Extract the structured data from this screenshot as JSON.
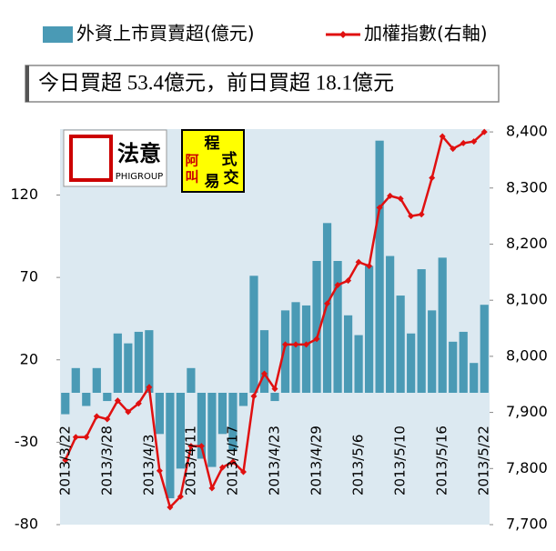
{
  "chart_data": {
    "type": "bar_line",
    "legend": {
      "bar": "外資上市買賣超(億元)",
      "line": "加權指數(右軸)"
    },
    "annotation": "今日買超 53.4億元，前日買超 18.1億元",
    "logos": {
      "brand": "法意",
      "brand_en": "PHIGROUP",
      "badge": [
        "程",
        "式",
        "易",
        "交"
      ],
      "badge_side": [
        "阿",
        "叫"
      ]
    },
    "categories": [
      "2013/3/22",
      null,
      null,
      null,
      "2013/3/28",
      null,
      null,
      null,
      "2013/4/3",
      null,
      null,
      null,
      "2013/4/11",
      null,
      null,
      null,
      "2013/4/17",
      null,
      null,
      null,
      "2013/4/23",
      null,
      null,
      null,
      "2013/4/29",
      null,
      null,
      null,
      "2013/5/6",
      null,
      null,
      null,
      "2013/5/10",
      null,
      null,
      null,
      "2013/5/16",
      null,
      null,
      null,
      "2013/5/22"
    ],
    "series": [
      {
        "name": "外資上市買賣超(億元)",
        "color": "#4a9ab5",
        "axis": "y",
        "values": [
          -13,
          15,
          -8,
          15,
          -5,
          36,
          30,
          37,
          38,
          -25,
          -64,
          -46,
          15,
          -40,
          -45,
          -25,
          -35,
          -8,
          71,
          38,
          -5,
          50,
          55,
          53,
          80,
          103,
          80,
          47,
          35,
          77,
          153,
          83,
          59,
          36,
          75,
          50,
          82,
          31,
          37,
          18.1,
          53.4
        ]
      },
      {
        "name": "加權指數(右軸)",
        "color": "#e01010",
        "axis": "y2",
        "values": [
          7815,
          7856,
          7856,
          7893,
          7888,
          7921,
          7901,
          7916,
          7945,
          7796,
          7731,
          7750,
          7840,
          7840,
          7765,
          7802,
          7812,
          7794,
          7929,
          7969,
          7942,
          8021,
          8021,
          8021,
          8031,
          8094,
          8127,
          8135,
          8168,
          8161,
          8265,
          8286,
          8281,
          8250,
          8253,
          8318,
          8392,
          8370,
          8380,
          8383,
          8400
        ]
      }
    ],
    "ylim": [
      -80,
      160
    ],
    "yticks": [
      -80,
      -30,
      20,
      70,
      120
    ],
    "y2lim": [
      7700,
      8405
    ],
    "y2ticks": [
      {
        "value": 7700,
        "label": "7,700"
      },
      {
        "value": 7800,
        "label": "7,800"
      },
      {
        "value": 7900,
        "label": "7,900"
      },
      {
        "value": 8000,
        "label": "8,000"
      },
      {
        "value": 8100,
        "label": "8,100"
      },
      {
        "value": 8200,
        "label": "8,200"
      },
      {
        "value": 8300,
        "label": "8,300"
      },
      {
        "value": 8400,
        "label": "8,400"
      }
    ],
    "grid": false
  }
}
